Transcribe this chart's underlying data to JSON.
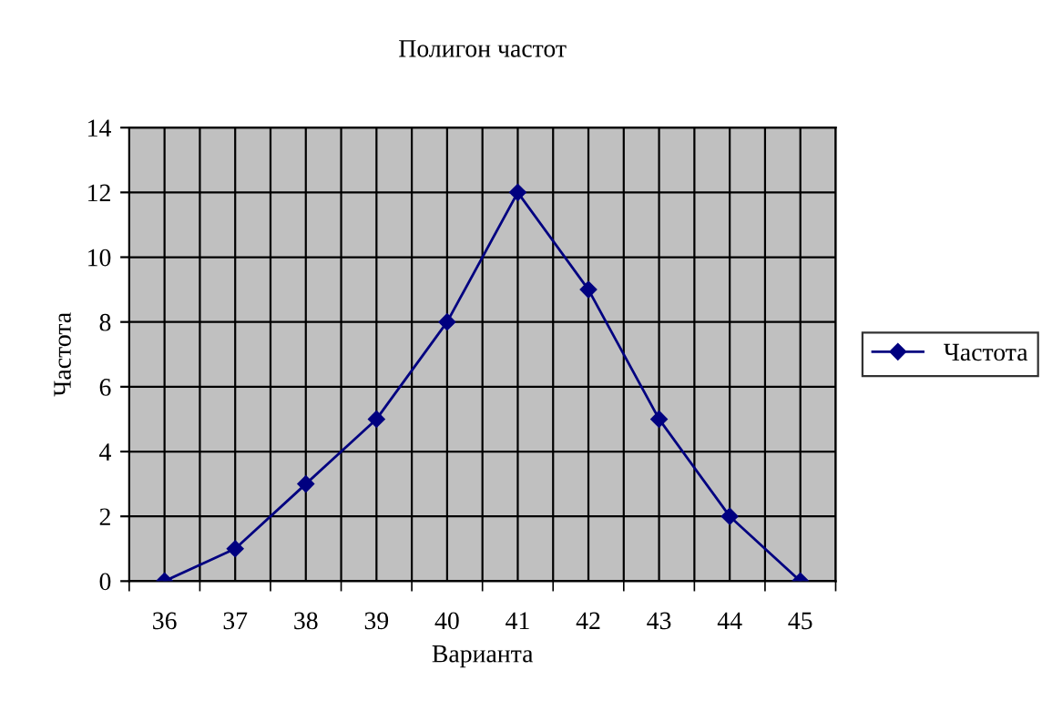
{
  "chart_data": {
    "type": "line",
    "title": "Полигон частот",
    "xlabel": "Варианта",
    "ylabel": "Частота",
    "categories": [
      "36",
      "37",
      "38",
      "39",
      "40",
      "41",
      "42",
      "43",
      "44",
      "45"
    ],
    "series": [
      {
        "name": "Частота",
        "color": "#000080",
        "values": [
          0,
          1,
          3,
          5,
          8,
          12,
          9,
          5,
          2,
          0
        ]
      }
    ],
    "ylim": [
      0,
      14
    ],
    "yticks": [
      0,
      2,
      4,
      6,
      8,
      10,
      12,
      14
    ],
    "grid": true,
    "legend": "right",
    "marker": "diamond",
    "line_style": "solid"
  }
}
